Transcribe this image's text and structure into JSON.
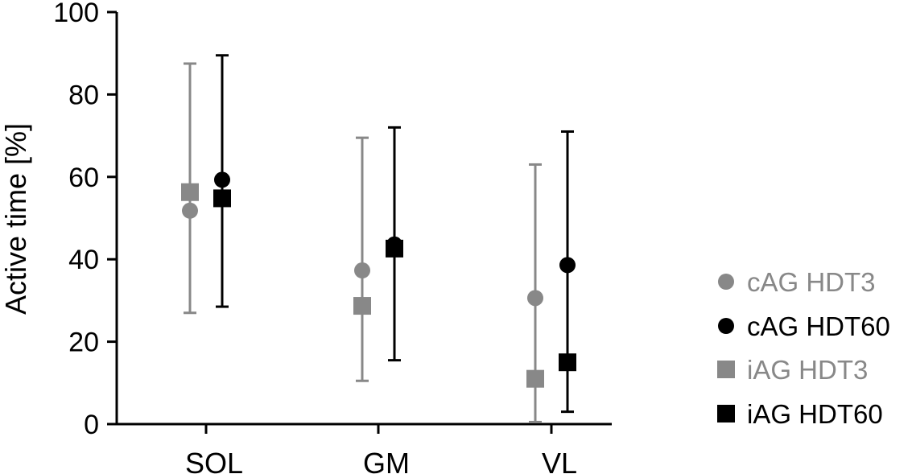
{
  "chart_data": {
    "type": "scatter",
    "title": "",
    "xlabel": "",
    "ylabel": "Active time [%]",
    "ylim": [
      0,
      100
    ],
    "yticks": [
      "0",
      "20",
      "40",
      "60",
      "80",
      "100"
    ],
    "categories": [
      "SOL",
      "GM",
      "VL"
    ],
    "grid": false,
    "legend_position": "right",
    "series": [
      {
        "name": "cAG HDT3",
        "marker": "circle",
        "color": "#888888",
        "values": [
          51.8,
          37.3,
          30.6
        ],
        "error_low": [
          27.0,
          10.5,
          0.5
        ],
        "error_high": [
          87.5,
          69.5,
          63.0
        ]
      },
      {
        "name": "cAG HDT60",
        "marker": "circle",
        "color": "#000000",
        "values": [
          59.3,
          43.6,
          38.6
        ],
        "error_low": [
          28.5,
          15.5,
          3.0
        ],
        "error_high": [
          89.5,
          72.0,
          71.0
        ]
      },
      {
        "name": "iAG HDT3",
        "marker": "square",
        "color": "#888888",
        "values": [
          56.3,
          28.7,
          11.0
        ],
        "error_low": null,
        "error_high": null
      },
      {
        "name": "iAG HDT60",
        "marker": "square",
        "color": "#000000",
        "values": [
          54.8,
          42.6,
          15.0
        ],
        "error_low": null,
        "error_high": null
      }
    ]
  }
}
